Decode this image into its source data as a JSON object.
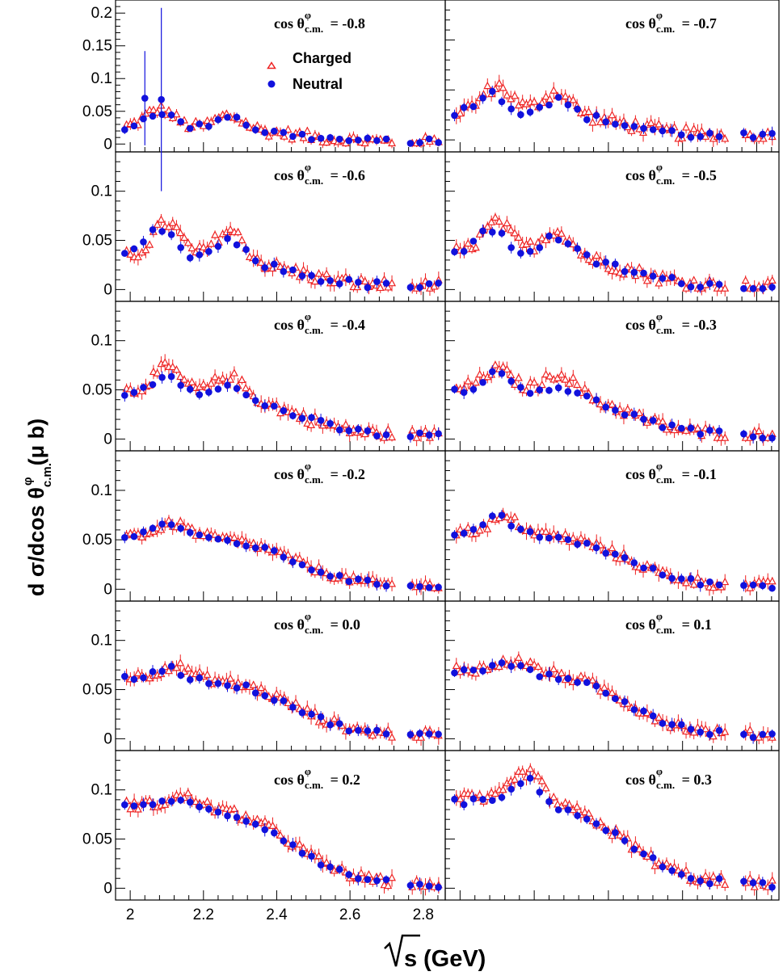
{
  "chart_data": {
    "type": "scatter",
    "xlabel": "√s (GeV)",
    "xlabel_unit": "(GeV)",
    "ylabel": "dσ/dcos θ^φ_c.m. (μ b)",
    "xlim": [
      1.96,
      2.86
    ],
    "x_ticks": [
      "2",
      "2.2",
      "2.4",
      "2.6",
      "2.8"
    ],
    "series_names": [
      "Charged",
      "Neutral"
    ],
    "colors": {
      "charged": "#ee2222",
      "neutral": "#1111dd"
    },
    "panels": [
      {
        "label": "cos θ",
        "sup": "φ",
        "sub": "c.m.",
        "value": "= -0.8",
        "ylim": [
          -0.012,
          0.22
        ],
        "yticks": [
          "0",
          "0.05",
          "0.1",
          "0.15",
          "0.2"
        ],
        "charged_peaks": [
          [
            2.08,
            0.028
          ],
          [
            2.27,
            0.02
          ]
        ],
        "neutral_peaks": [
          [
            2.08,
            0.026
          ],
          [
            2.27,
            0.022
          ]
        ],
        "base": 0.022,
        "decay": 0.025,
        "noise": 0.01
      },
      {
        "label": "cos θ",
        "sup": "φ",
        "sub": "c.m.",
        "value": "= -0.7",
        "ylim": [
          -0.012,
          0.14
        ],
        "yticks": [],
        "charged_peaks": [
          [
            2.1,
            0.026
          ],
          [
            2.26,
            0.022
          ]
        ],
        "neutral_peaks": [
          [
            2.08,
            0.02
          ],
          [
            2.26,
            0.015
          ]
        ],
        "base": 0.025,
        "decay": 0.025,
        "noise": 0.008
      },
      {
        "label": "cos θ",
        "sup": "φ",
        "sub": "c.m.",
        "value": "= -0.6",
        "ylim": [
          -0.012,
          0.14
        ],
        "yticks": [
          "0",
          "0.05",
          "0.1"
        ],
        "charged_peaks": [
          [
            2.1,
            0.035
          ],
          [
            2.27,
            0.03
          ]
        ],
        "neutral_peaks": [
          [
            2.08,
            0.03
          ],
          [
            2.27,
            0.02
          ]
        ],
        "base": 0.03,
        "decay": 0.03,
        "noise": 0.008
      },
      {
        "label": "cos θ",
        "sup": "φ",
        "sub": "c.m.",
        "value": "= -0.5",
        "ylim": [
          -0.012,
          0.14
        ],
        "yticks": [],
        "charged_peaks": [
          [
            2.1,
            0.03
          ],
          [
            2.26,
            0.025
          ]
        ],
        "neutral_peaks": [
          [
            2.08,
            0.025
          ],
          [
            2.26,
            0.02
          ]
        ],
        "base": 0.035,
        "decay": 0.03,
        "noise": 0.008
      },
      {
        "label": "cos θ",
        "sup": "φ",
        "sub": "c.m.",
        "value": "= -0.4",
        "ylim": [
          -0.012,
          0.14
        ],
        "yticks": [
          "0",
          "0.05",
          "0.1"
        ],
        "charged_peaks": [
          [
            2.1,
            0.025
          ],
          [
            2.27,
            0.02
          ]
        ],
        "neutral_peaks": [
          [
            2.1,
            0.02
          ],
          [
            2.26,
            0.012
          ]
        ],
        "base": 0.045,
        "decay": 0.03,
        "noise": 0.007
      },
      {
        "label": "cos θ",
        "sup": "φ",
        "sub": "c.m.",
        "value": "= -0.3",
        "ylim": [
          -0.012,
          0.14
        ],
        "yticks": [],
        "charged_peaks": [
          [
            2.1,
            0.02
          ],
          [
            2.27,
            0.02
          ]
        ],
        "neutral_peaks": [
          [
            2.1,
            0.018
          ],
          [
            2.27,
            0.008
          ]
        ],
        "base": 0.048,
        "decay": 0.03,
        "noise": 0.007
      },
      {
        "label": "cos θ",
        "sup": "φ",
        "sub": "c.m.",
        "value": "= -0.2",
        "ylim": [
          -0.012,
          0.14
        ],
        "yticks": [
          "0",
          "0.05",
          "0.1"
        ],
        "charged_peaks": [
          [
            2.12,
            0.012
          ]
        ],
        "neutral_peaks": [
          [
            2.1,
            0.015
          ]
        ],
        "base": 0.052,
        "decay": 0.028,
        "noise": 0.005
      },
      {
        "label": "cos θ",
        "sup": "φ",
        "sub": "c.m.",
        "value": "= -0.1",
        "ylim": [
          -0.012,
          0.14
        ],
        "yticks": [],
        "charged_peaks": [
          [
            2.12,
            0.015
          ]
        ],
        "neutral_peaks": [
          [
            2.1,
            0.018
          ]
        ],
        "base": 0.055,
        "decay": 0.03,
        "noise": 0.006
      },
      {
        "label": "cos θ",
        "sup": "φ",
        "sub": "c.m.",
        "value": "= 0.0",
        "ylim": [
          -0.012,
          0.14
        ],
        "yticks": [
          "0",
          "0.05",
          "0.1"
        ],
        "charged_peaks": [
          [
            2.12,
            0.012
          ]
        ],
        "neutral_peaks": [
          [
            2.1,
            0.012
          ]
        ],
        "base": 0.06,
        "decay": 0.03,
        "noise": 0.006
      },
      {
        "label": "cos θ",
        "sup": "φ",
        "sub": "c.m.",
        "value": "= 0.1",
        "ylim": [
          -0.012,
          0.14
        ],
        "yticks": [],
        "charged_peaks": [
          [
            2.15,
            0.01
          ]
        ],
        "neutral_peaks": [
          [
            2.12,
            0.01
          ]
        ],
        "base": 0.068,
        "decay": 0.03,
        "noise": 0.006
      },
      {
        "label": "cos θ",
        "sup": "φ",
        "sub": "c.m.",
        "value": "= 0.2",
        "ylim": [
          -0.012,
          0.14
        ],
        "yticks": [
          "0",
          "0.05",
          "0.1"
        ],
        "charged_peaks": [
          [
            2.15,
            0.01
          ]
        ],
        "neutral_peaks": [
          [
            2.12,
            0.01
          ]
        ],
        "base": 0.082,
        "decay": 0.025,
        "noise": 0.006
      },
      {
        "label": "cos θ",
        "sup": "φ",
        "sub": "c.m.",
        "value": "= 0.3",
        "ylim": [
          -0.012,
          0.14
        ],
        "yticks": [],
        "charged_peaks": [
          [
            2.18,
            0.03
          ]
        ],
        "neutral_peaks": [
          [
            2.18,
            0.025
          ]
        ],
        "base": 0.088,
        "decay": 0.02,
        "noise": 0.007
      }
    ]
  }
}
